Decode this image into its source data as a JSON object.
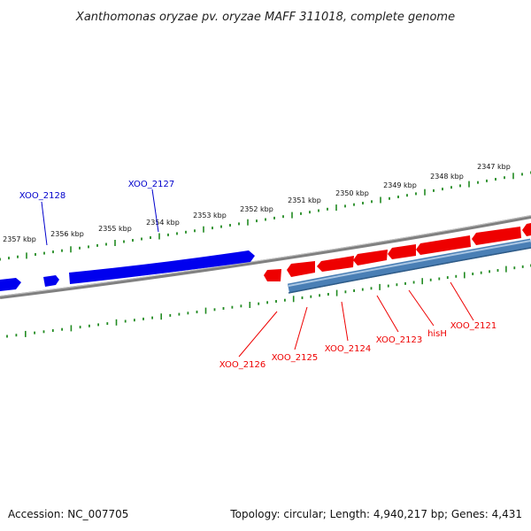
{
  "title": "Xanthomonas oryzae pv. oryzae MAFF 311018, complete genome",
  "footer": {
    "accession": "Accession: NC_007705",
    "topology": "Topology: circular; Length: 4,940,217 bp; Genes: 4,431"
  },
  "colors": {
    "backbone": "#808080",
    "forward_gene": "#0000ee",
    "reverse_gene": "#ee0000",
    "cds_track": "#4a7fb5",
    "ticks": "#228b22"
  },
  "ruler_labels": [
    "2347 kbp",
    "2348 kbp",
    "2349 kbp",
    "2350 kbp",
    "2351 kbp",
    "2352 kbp",
    "2353 kbp",
    "2354 kbp",
    "2355 kbp",
    "2356 kbp",
    "2357 kbp"
  ],
  "forward_genes": [
    {
      "name": "XOO_2128"
    },
    {
      "name": "XOO_2127"
    }
  ],
  "reverse_genes": [
    {
      "name": "XOO_2126"
    },
    {
      "name": "XOO_2125"
    },
    {
      "name": "XOO_2124"
    },
    {
      "name": "XOO_2123"
    },
    {
      "name": "hisH"
    },
    {
      "name": "XOO_2121"
    }
  ]
}
